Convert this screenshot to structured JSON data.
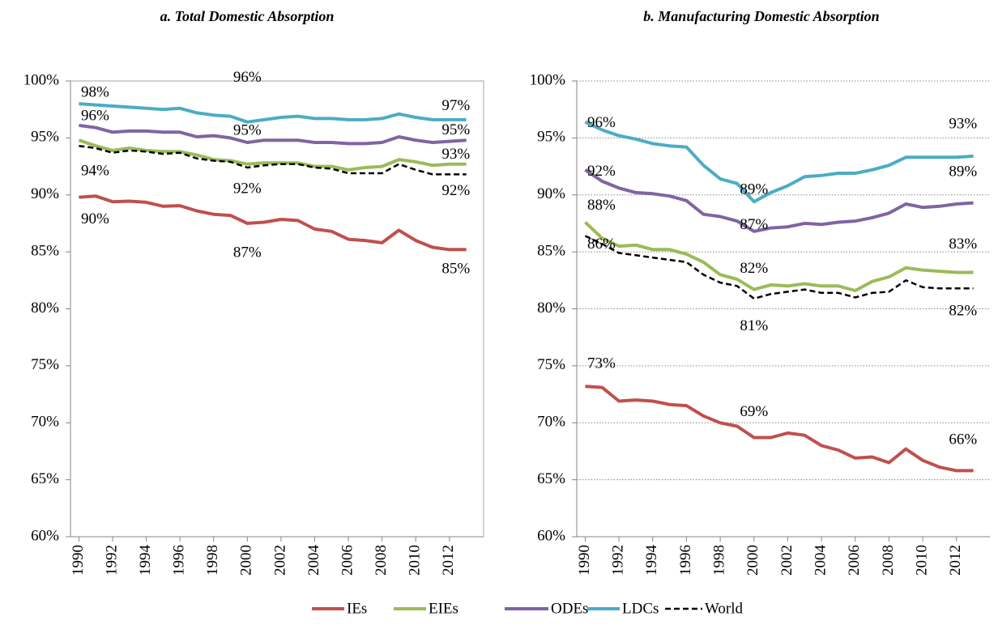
{
  "chart_data": [
    {
      "type": "line",
      "title": "a. Total Domestic Absorption",
      "x": [
        1990,
        1991,
        1992,
        1993,
        1994,
        1995,
        1996,
        1997,
        1998,
        1999,
        2000,
        2001,
        2002,
        2003,
        2004,
        2005,
        2006,
        2007,
        2008,
        2009,
        2010,
        2011,
        2012,
        2013
      ],
      "xlim": [
        1989.5,
        2013.5
      ],
      "xticks": [
        1990,
        1992,
        1994,
        1996,
        1998,
        2000,
        2002,
        2004,
        2006,
        2008,
        2010,
        2012
      ],
      "ylim": [
        60,
        100
      ],
      "yticks": [
        {
          "value": 60,
          "label": "60%"
        },
        {
          "value": 65,
          "label": "65%"
        },
        {
          "value": 70,
          "label": "70%"
        },
        {
          "value": 75,
          "label": "75%"
        },
        {
          "value": 80,
          "label": "80%"
        },
        {
          "value": 85,
          "label": "85%"
        },
        {
          "value": 90,
          "label": "90%"
        },
        {
          "value": 95,
          "label": "95%"
        },
        {
          "value": 100,
          "label": "100%"
        }
      ],
      "grid": false,
      "legend": "bottom",
      "series": [
        {
          "name": "IEs",
          "color": "#c0504d",
          "values": [
            89.8,
            89.9,
            89.4,
            89.45,
            89.35,
            89.0,
            89.05,
            88.6,
            88.3,
            88.2,
            87.5,
            87.6,
            87.85,
            87.75,
            87.0,
            86.8,
            86.1,
            86.0,
            85.8,
            86.9,
            86.0,
            85.4,
            85.2,
            85.2
          ],
          "value_labels": [
            "90%",
            null,
            null,
            null,
            null,
            null,
            null,
            null,
            null,
            null,
            "87%",
            null,
            null,
            null,
            null,
            null,
            null,
            null,
            null,
            null,
            null,
            null,
            "85%",
            null
          ]
        },
        {
          "name": "EIEs",
          "color": "#9bbb59",
          "values": [
            94.8,
            94.3,
            93.9,
            94.1,
            93.9,
            93.8,
            93.8,
            93.5,
            93.1,
            93.0,
            92.7,
            92.8,
            92.8,
            92.8,
            92.5,
            92.5,
            92.2,
            92.4,
            92.5,
            93.1,
            92.9,
            92.6,
            92.7,
            92.7
          ],
          "value_labels": [
            null,
            null,
            null,
            null,
            null,
            null,
            null,
            null,
            null,
            null,
            null,
            null,
            null,
            null,
            null,
            null,
            null,
            null,
            null,
            null,
            null,
            null,
            "93%",
            null
          ]
        },
        {
          "name": "ODEs",
          "color": "#8064a2",
          "values": [
            96.1,
            95.9,
            95.5,
            95.6,
            95.6,
            95.5,
            95.5,
            95.1,
            95.2,
            95.0,
            94.6,
            94.8,
            94.8,
            94.8,
            94.6,
            94.6,
            94.5,
            94.5,
            94.6,
            95.1,
            94.8,
            94.6,
            94.7,
            94.8
          ],
          "value_labels": [
            "96%",
            null,
            null,
            null,
            null,
            null,
            null,
            null,
            null,
            null,
            "95%",
            null,
            null,
            null,
            null,
            null,
            null,
            null,
            null,
            null,
            null,
            null,
            "95%",
            null
          ]
        },
        {
          "name": "LDCs",
          "color": "#4bacc6",
          "values": [
            98.0,
            97.9,
            97.8,
            97.7,
            97.6,
            97.5,
            97.6,
            97.2,
            97.0,
            96.9,
            96.4,
            96.6,
            96.8,
            96.9,
            96.7,
            96.7,
            96.6,
            96.6,
            96.7,
            97.1,
            96.8,
            96.6,
            96.6,
            96.6
          ],
          "value_labels": [
            "98%",
            null,
            null,
            null,
            null,
            null,
            null,
            null,
            null,
            null,
            "96%",
            null,
            null,
            null,
            null,
            null,
            null,
            null,
            null,
            null,
            null,
            null,
            "97%",
            null
          ]
        },
        {
          "name": "World",
          "color": "#000000",
          "style": "dashed",
          "values": [
            94.3,
            94.1,
            93.7,
            93.9,
            93.8,
            93.6,
            93.7,
            93.2,
            93.0,
            92.9,
            92.4,
            92.6,
            92.7,
            92.7,
            92.4,
            92.3,
            91.9,
            91.9,
            91.9,
            92.7,
            92.2,
            91.8,
            91.8,
            91.8
          ],
          "value_labels": [
            "94%",
            null,
            null,
            null,
            null,
            null,
            null,
            null,
            null,
            null,
            "92%",
            null,
            null,
            null,
            null,
            null,
            null,
            null,
            null,
            null,
            null,
            null,
            "92%",
            null
          ]
        }
      ]
    },
    {
      "type": "line",
      "title": "b. Manufacturing Domestic Absorption",
      "x": [
        1990,
        1991,
        1992,
        1993,
        1994,
        1995,
        1996,
        1997,
        1998,
        1999,
        2000,
        2001,
        2002,
        2003,
        2004,
        2005,
        2006,
        2007,
        2008,
        2009,
        2010,
        2011,
        2012,
        2013
      ],
      "xlim": [
        1989.5,
        2013.5
      ],
      "xticks": [
        1990,
        1992,
        1994,
        1996,
        1998,
        2000,
        2002,
        2004,
        2006,
        2008,
        2010,
        2012
      ],
      "ylim": [
        60,
        100
      ],
      "yticks": [
        {
          "value": 60,
          "label": "60%"
        },
        {
          "value": 65,
          "label": "65%"
        },
        {
          "value": 70,
          "label": "70%"
        },
        {
          "value": 75,
          "label": "75%"
        },
        {
          "value": 80,
          "label": "80%"
        },
        {
          "value": 85,
          "label": "85%"
        },
        {
          "value": 90,
          "label": "90%"
        },
        {
          "value": 95,
          "label": "95%"
        },
        {
          "value": 100,
          "label": "100%"
        }
      ],
      "grid": true,
      "series": [
        {
          "name": "IEs",
          "color": "#c0504d",
          "values": [
            73.2,
            73.1,
            71.9,
            72.0,
            71.9,
            71.6,
            71.5,
            70.6,
            70.0,
            69.7,
            68.7,
            68.7,
            69.1,
            68.9,
            68.0,
            67.6,
            66.9,
            67.0,
            66.5,
            67.7,
            66.7,
            66.1,
            65.8,
            65.8
          ],
          "value_labels": [
            "73%",
            null,
            null,
            null,
            null,
            null,
            null,
            null,
            null,
            null,
            "69%",
            null,
            null,
            null,
            null,
            null,
            null,
            null,
            null,
            null,
            null,
            null,
            "66%",
            null
          ]
        },
        {
          "name": "EIEs",
          "color": "#9bbb59",
          "values": [
            87.6,
            86.2,
            85.5,
            85.6,
            85.2,
            85.2,
            84.8,
            84.1,
            83.0,
            82.6,
            81.7,
            82.1,
            82.0,
            82.2,
            82.0,
            82.0,
            81.6,
            82.4,
            82.8,
            83.6,
            83.4,
            83.3,
            83.2,
            83.2
          ],
          "value_labels": [
            "88%",
            null,
            null,
            null,
            null,
            null,
            null,
            null,
            null,
            null,
            "82%",
            null,
            null,
            null,
            null,
            null,
            null,
            null,
            null,
            null,
            null,
            null,
            "83%",
            null
          ]
        },
        {
          "name": "ODEs",
          "color": "#8064a2",
          "values": [
            92.2,
            91.2,
            90.6,
            90.2,
            90.1,
            89.9,
            89.5,
            88.3,
            88.1,
            87.7,
            86.8,
            87.1,
            87.2,
            87.5,
            87.4,
            87.6,
            87.7,
            88.0,
            88.4,
            89.2,
            88.9,
            89.0,
            89.2,
            89.3
          ],
          "value_labels": [
            "92%",
            null,
            null,
            null,
            null,
            null,
            null,
            null,
            null,
            null,
            "87%",
            null,
            null,
            null,
            null,
            null,
            null,
            null,
            null,
            null,
            null,
            null,
            "89%",
            null
          ]
        },
        {
          "name": "LDCs",
          "color": "#4bacc6",
          "values": [
            96.4,
            95.7,
            95.2,
            94.9,
            94.5,
            94.3,
            94.2,
            92.6,
            91.4,
            91.0,
            89.4,
            90.2,
            90.8,
            91.6,
            91.7,
            91.9,
            91.9,
            92.2,
            92.6,
            93.3,
            93.3,
            93.3,
            93.3,
            93.4
          ],
          "value_labels": [
            "96%",
            null,
            null,
            null,
            null,
            null,
            null,
            null,
            null,
            null,
            "89%",
            null,
            null,
            null,
            null,
            null,
            null,
            null,
            null,
            null,
            null,
            null,
            "93%",
            null
          ]
        },
        {
          "name": "World",
          "color": "#000000",
          "style": "dashed",
          "values": [
            86.4,
            85.7,
            84.9,
            84.7,
            84.5,
            84.3,
            84.1,
            83.0,
            82.3,
            82.0,
            80.9,
            81.3,
            81.5,
            81.7,
            81.4,
            81.4,
            81.0,
            81.4,
            81.5,
            82.5,
            81.9,
            81.8,
            81.8,
            81.8
          ],
          "value_labels": [
            "86%",
            null,
            null,
            null,
            null,
            null,
            null,
            null,
            null,
            null,
            "81%",
            null,
            null,
            null,
            null,
            null,
            null,
            null,
            null,
            null,
            null,
            null,
            "82%",
            null
          ]
        }
      ]
    }
  ]
}
